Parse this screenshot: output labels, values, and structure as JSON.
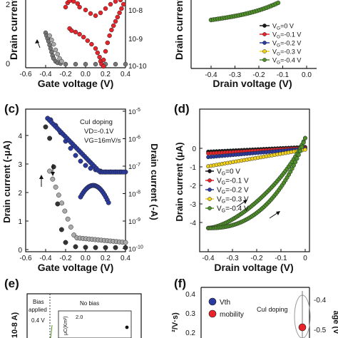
{
  "panels": [
    {
      "id": "top-left",
      "ylabel_left": "Drain current",
      "ylabel_right": "",
      "xlabel": "Gate voltage (V)",
      "xticks": [
        "-0.6",
        "-0.4",
        "-0.2",
        "0.0",
        "0.2",
        "0.4"
      ],
      "yright_ticks": [
        "10-8",
        "10-9",
        "10-10"
      ],
      "yleft_ticks": [
        "2",
        "0"
      ]
    },
    {
      "id": "top-right",
      "ylabel_left": "Drain current",
      "xlabel": "Drain voltage (V)",
      "xticks": [
        "-0.4",
        "-0.3",
        "-0.2",
        "-0.1",
        "0.0"
      ],
      "legend": [
        "VG=0 V",
        "VG=-0.1 V",
        "VG=-0.2 V",
        "VG=-0.3 V",
        "VG=-0.4 V"
      ]
    },
    {
      "id": "c",
      "letter": "(c)",
      "ylabel_left": "Drain current (-μA)",
      "ylabel_right": "Drain current (-A)",
      "xlabel": "Gate voltage (V)",
      "xticks": [
        "-0.6",
        "-0.4",
        "-0.2",
        "0.0",
        "0.2",
        "0.4"
      ],
      "yleft_ticks": [
        "4",
        "3",
        "2",
        "1",
        "0"
      ],
      "yright_ticks": [
        "10-5",
        "10-6",
        "10-7",
        "10-8",
        "10-9",
        "10-10"
      ],
      "annotation": [
        "CuI doping",
        "VD=-0.1V",
        "VG=16mV/s"
      ]
    },
    {
      "id": "d",
      "letter": "(d)",
      "ylabel_left": "Drain current (μA)",
      "xlabel": "Drain voltage (V)",
      "xticks": [
        "-0.4",
        "-0.3",
        "-0.2",
        "-0.1",
        "0"
      ],
      "yleft_ticks": [
        "0",
        "-1",
        "-2",
        "-3",
        "-4"
      ],
      "legend": [
        "VG=0 V",
        "VG=-0.1 V",
        "VG=-0.2 V",
        "VG=-0.3 V",
        "VG=-0.4 V"
      ]
    },
    {
      "id": "e",
      "letter": "(e)",
      "ylabel_left": "10-8 A)",
      "labels": [
        "Bias",
        "applied",
        "No bias",
        "0.4 V"
      ],
      "inset": [
        "2.0",
        "μC(Km²)"
      ]
    },
    {
      "id": "f",
      "letter": "(f)",
      "yleft_ticks": [
        "0.4",
        "0.3",
        "0.2"
      ],
      "ylabel_left": "²/V·s)",
      "yright_ticks": [
        "-0.4",
        "-0.5"
      ],
      "ylabel_right": "age (V",
      "legend": [
        "Vth",
        "mobility"
      ],
      "annotation": "CuI doping"
    }
  ],
  "colors": {
    "black": "#1a1a1a",
    "red": "#e8232a",
    "blue": "#2b3a9e",
    "green": "#4f8f2a",
    "yellow": "#f2d21b",
    "grey": "#8a8a8a"
  },
  "chart_data": [
    {
      "type": "scatter",
      "panel": "c",
      "xlabel": "Gate voltage (V)",
      "ylabel": "Drain current (-μA)",
      "xlim": [
        -0.6,
        0.4
      ],
      "ylim": [
        0,
        4.7
      ],
      "series": [
        {
          "name": "",
          "color": "#1a1a1a",
          "x": [
            -0.4,
            -0.36,
            -0.32,
            -0.28,
            -0.24,
            -0.2,
            -0.1,
            0.0,
            0.1,
            0.2,
            0.3,
            0.4
          ],
          "y": [
            4.3,
            3.9,
            2.9,
            1.6,
            0.7,
            0.25,
            0.1,
            0.08,
            0.07,
            0.07,
            0.07,
            0.07
          ]
        },
        {
          "name": "",
          "color": "#2b3a9e",
          "x": [
            -0.38,
            -0.35,
            -0.3,
            -0.25,
            -0.2,
            -0.15,
            -0.1,
            -0.05,
            0.0,
            0.05,
            0.1,
            0.15,
            0.2,
            0.25,
            0.3,
            0.35,
            0.4
          ],
          "y": [
            4.6,
            4.55,
            4.35,
            4.1,
            3.8,
            3.55,
            3.3,
            3.1,
            2.95,
            2.85,
            2.8,
            2.75,
            2.72,
            2.72,
            2.72,
            2.72,
            2.72
          ]
        }
      ]
    },
    {
      "type": "line",
      "panel": "d",
      "xlabel": "Drain voltage (V)",
      "ylabel": "Drain current (μA)",
      "xlim": [
        -0.42,
        0.0
      ],
      "ylim": [
        -4.5,
        0.6
      ],
      "series": [
        {
          "name": "VG=0 V",
          "color": "#1a1a1a",
          "x": [
            -0.4,
            -0.3,
            -0.2,
            -0.1,
            0.0
          ],
          "y": [
            -0.25,
            -0.2,
            -0.15,
            -0.1,
            0.0
          ]
        },
        {
          "name": "VG=-0.1 V",
          "color": "#e8232a",
          "x": [
            -0.4,
            -0.3,
            -0.2,
            -0.1,
            0.0
          ],
          "y": [
            -0.3,
            -0.25,
            -0.18,
            -0.1,
            0.0
          ]
        },
        {
          "name": "VG=-0.2 V",
          "color": "#2b3a9e",
          "x": [
            -0.4,
            -0.3,
            -0.2,
            -0.1,
            0.0
          ],
          "y": [
            -0.45,
            -0.4,
            -0.3,
            -0.15,
            0.0
          ]
        },
        {
          "name": "VG=-0.3 V",
          "color": "#f2d21b",
          "x": [
            -0.4,
            -0.3,
            -0.2,
            -0.1,
            0.0
          ],
          "y": [
            -0.9,
            -0.75,
            -0.55,
            -0.3,
            0.0
          ]
        },
        {
          "name": "VG=-0.4 V",
          "color": "#4f8f2a",
          "x": [
            -0.4,
            -0.35,
            -0.3,
            -0.25,
            -0.2,
            -0.15,
            -0.1,
            -0.05,
            0.0
          ],
          "y": [
            -4.3,
            -4.15,
            -3.95,
            -3.6,
            -3.2,
            -2.6,
            -1.8,
            -0.9,
            0.5
          ]
        }
      ]
    }
  ]
}
